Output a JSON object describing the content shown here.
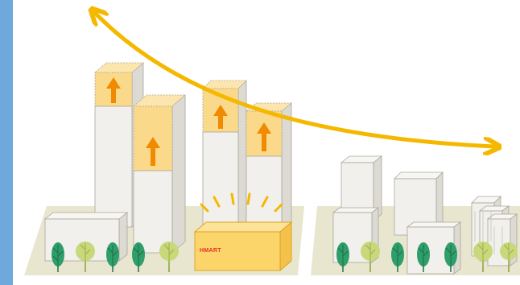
{
  "diagram": {
    "store_sign": "HMART",
    "colors": {
      "side_panel": "#6fa8dc",
      "arrow": "#f5b800",
      "up_arrow": "#f08a00",
      "added_height": "#fbd98a",
      "building": "#f1f0ec",
      "building_outline": "#a9a79c",
      "ground": "#e9e6cf",
      "store_fill": "#fcd56a",
      "store_outline": "#d9a21a",
      "store_text": "#e03020",
      "tree_dark": "#2e9e6a",
      "tree_light": "#c8d87a"
    },
    "icons": {
      "trend_arrow": "double-headed-curved-arrow-icon",
      "height_increase": "up-arrow-icon",
      "trees": "tree-icon"
    }
  }
}
